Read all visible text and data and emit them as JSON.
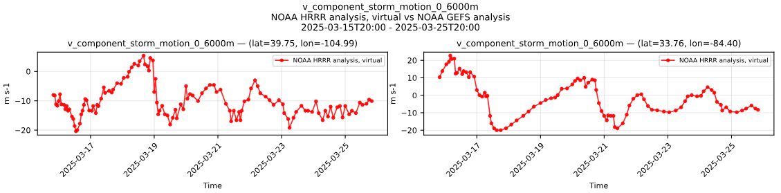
{
  "chart_data": [
    {
      "type": "line",
      "title": "v_component_storm_motion_0_6000m — (lat=39.75, lon=-104.99)",
      "xlabel": "Time",
      "ylabel": "m s-1",
      "annotations": [
        "v_component_storm_motion_0_6000m\nNOAA HRRR analysis, virtual vs NOAA GEFS analysis\n2025-03-15T20:00 - 2025-03-25T20:00"
      ],
      "xlim": [
        "2025-03-15T08:00",
        "2025-03-26T08:00"
      ],
      "xticks": [
        "2025-03-17",
        "2025-03-19",
        "2025-03-21",
        "2025-03-23",
        "2025-03-25"
      ],
      "ylim": [
        -21.7,
        6.6
      ],
      "yticks": [
        -20,
        -10,
        0
      ],
      "grid": true,
      "legend": "top right",
      "marker": "circle",
      "line_style": "solid",
      "series": [
        {
          "name": "NOAA HRRR analysis, virtual",
          "color": "#ff0000",
          "x": [
            "2025-03-15T20:00",
            "2025-03-15T21:00",
            "2025-03-15T22:00",
            "2025-03-15T23:00",
            "2025-03-16T00:00",
            "2025-03-16T01:00",
            "2025-03-16T02:00",
            "2025-03-16T04:00",
            "2025-03-16T05:00",
            "2025-03-16T06:00",
            "2025-03-16T07:00",
            "2025-03-16T08:00",
            "2025-03-16T10:00",
            "2025-03-16T11:00",
            "2025-03-16T12:00",
            "2025-03-16T13:00",
            "2025-03-16T14:00",
            "2025-03-16T16:00",
            "2025-03-16T17:00",
            "2025-03-16T18:00",
            "2025-03-16T19:00",
            "2025-03-16T20:00",
            "2025-03-16T21:00",
            "2025-03-16T23:00",
            "2025-03-17T01:00",
            "2025-03-17T02:00",
            "2025-03-17T04:00",
            "2025-03-17T05:00",
            "2025-03-17T06:00",
            "2025-03-17T08:00",
            "2025-03-17T10:00",
            "2025-03-17T11:00",
            "2025-03-17T14:00",
            "2025-03-17T16:00",
            "2025-03-17T17:00",
            "2025-03-17T20:00",
            "2025-03-17T23:00",
            "2025-03-18T01:00",
            "2025-03-18T04:00",
            "2025-03-18T05:00",
            "2025-03-18T07:00",
            "2025-03-18T09:00",
            "2025-03-18T12:00",
            "2025-03-18T13:00",
            "2025-03-18T16:00",
            "2025-03-18T17:00",
            "2025-03-18T19:00",
            "2025-03-18T20:00",
            "2025-03-18T21:00",
            "2025-03-18T23:00",
            "2025-03-19T00:00",
            "2025-03-19T01:00",
            "2025-03-19T02:00",
            "2025-03-19T03:00",
            "2025-03-19T04:00",
            "2025-03-19T06:00",
            "2025-03-19T08:00",
            "2025-03-19T10:00",
            "2025-03-19T12:00",
            "2025-03-19T14:00",
            "2025-03-19T16:00",
            "2025-03-19T17:00",
            "2025-03-19T20:00",
            "2025-03-19T22:00",
            "2025-03-20T00:00",
            "2025-03-20T01:00",
            "2025-03-20T03:00",
            "2025-03-20T05:00",
            "2025-03-20T09:00",
            "2025-03-20T12:00",
            "2025-03-20T15:00",
            "2025-03-20T18:00",
            "2025-03-20T21:00",
            "2025-03-20T23:00",
            "2025-03-21T02:00",
            "2025-03-21T06:00",
            "2025-03-21T09:00",
            "2025-03-21T10:00",
            "2025-03-21T12:00",
            "2025-03-21T14:00",
            "2025-03-21T16:00",
            "2025-03-21T17:00",
            "2025-03-21T18:00",
            "2025-03-21T20:00",
            "2025-03-21T23:00",
            "2025-03-22T01:00",
            "2025-03-22T04:00",
            "2025-03-22T06:00",
            "2025-03-22T08:00",
            "2025-03-22T12:00",
            "2025-03-22T15:00",
            "2025-03-22T18:00",
            "2025-03-22T22:00",
            "2025-03-23T01:00",
            "2025-03-23T02:00",
            "2025-03-23T05:00",
            "2025-03-23T06:00",
            "2025-03-23T09:00",
            "2025-03-23T11:00",
            "2025-03-23T15:00",
            "2025-03-23T18:00",
            "2025-03-23T20:00",
            "2025-03-23T23:00",
            "2025-03-24T02:00",
            "2025-03-24T04:00",
            "2025-03-24T07:00",
            "2025-03-24T09:00",
            "2025-03-24T11:00",
            "2025-03-24T13:00",
            "2025-03-24T15:00",
            "2025-03-24T18:00",
            "2025-03-24T20:00",
            "2025-03-24T22:00",
            "2025-03-25T00:00",
            "2025-03-25T03:00",
            "2025-03-25T05:00",
            "2025-03-25T08:00",
            "2025-03-25T11:00",
            "2025-03-25T13:00",
            "2025-03-25T16:00",
            "2025-03-25T18:00",
            "2025-03-25T20:00"
          ],
          "values": [
            -8.0,
            -8.2,
            -11.2,
            -11.7,
            -10.1,
            -7.8,
            -11.2,
            -11.4,
            -12.9,
            -11.8,
            -13.4,
            -12.9,
            -15.4,
            -16.2,
            -18.6,
            -20.4,
            -20,
            -17.8,
            -14.6,
            -13.4,
            -11.4,
            -9.4,
            -9.8,
            -13.3,
            -13.4,
            -11.8,
            -14.2,
            -11.4,
            -11.8,
            -9.3,
            -5.4,
            -7.3,
            -6.6,
            -7.2,
            -6.2,
            -4.0,
            -4.2,
            -2.2,
            -1.8,
            -0.1,
            1.4,
            2.6,
            2.0,
            3.5,
            5.4,
            2.4,
            1.8,
            0.3,
            4.6,
            3.8,
            -7.0,
            -2.5,
            -10.6,
            -14.6,
            -13.4,
            -11.7,
            -14.6,
            -15.0,
            -18.1,
            -15.8,
            -13.0,
            -16.0,
            -11.2,
            -12.9,
            -5.0,
            -9.3,
            -7.7,
            -8.2,
            -10.1,
            -7.4,
            -5.8,
            -4.6,
            -4.6,
            -7.0,
            -6.2,
            -11.0,
            -13.4,
            -17.0,
            -13.4,
            -16.6,
            -13.8,
            -16.6,
            -13.4,
            -10.2,
            -9.6,
            -5.8,
            -3.0,
            -5.0,
            -7.4,
            -8.6,
            -9.8,
            -11.4,
            -9.8,
            -11.2,
            -14.2,
            -16.2,
            -19.2,
            -15.8,
            -13.8,
            -11.7,
            -13.4,
            -13.4,
            -13.8,
            -10.2,
            -14.2,
            -16.6,
            -13.4,
            -15.4,
            -12.0,
            -15.8,
            -12.2,
            -11.8,
            -15.7,
            -11.8,
            -14.6,
            -13.4,
            -14.2,
            -10.6,
            -11.4,
            -11.0,
            -9.6,
            -10.1
          ]
        }
      ]
    },
    {
      "type": "line",
      "title": "v_component_storm_motion_0_6000m — (lat=33.76, lon=-84.40)",
      "xlabel": "Time",
      "ylabel": "m s-1",
      "xlim": [
        "2025-03-15T08:00",
        "2025-03-26T08:00"
      ],
      "xticks": [
        "2025-03-17",
        "2025-03-19",
        "2025-03-21",
        "2025-03-23",
        "2025-03-25"
      ],
      "ylim": [
        -22.8,
        24.7
      ],
      "yticks": [
        -20,
        -10,
        0,
        10,
        20
      ],
      "grid": true,
      "legend": "top right",
      "marker": "circle",
      "line_style": "solid",
      "series": [
        {
          "name": "NOAA HRRR analysis, virtual",
          "color": "#ff0000",
          "x": [
            "2025-03-15T20:00",
            "2025-03-15T22:00",
            "2025-03-16T01:00",
            "2025-03-16T03:00",
            "2025-03-16T04:00",
            "2025-03-16T05:00",
            "2025-03-16T07:00",
            "2025-03-16T08:00",
            "2025-03-16T09:00",
            "2025-03-16T11:00",
            "2025-03-16T13:00",
            "2025-03-16T14:00",
            "2025-03-16T16:00",
            "2025-03-16T18:00",
            "2025-03-16T19:00",
            "2025-03-16T22:00",
            "2025-03-17T00:00",
            "2025-03-17T02:00",
            "2025-03-17T04:00",
            "2025-03-17T06:00",
            "2025-03-17T07:00",
            "2025-03-17T08:00",
            "2025-03-17T10:00",
            "2025-03-17T11:00",
            "2025-03-17T13:00",
            "2025-03-17T15:00",
            "2025-03-17T18:00",
            "2025-03-17T22:00",
            "2025-03-18T02:00",
            "2025-03-18T06:00",
            "2025-03-18T11:00",
            "2025-03-18T15:00",
            "2025-03-18T19:00",
            "2025-03-19T00:00",
            "2025-03-19T04:00",
            "2025-03-19T08:00",
            "2025-03-19T11:00",
            "2025-03-19T13:00",
            "2025-03-19T16:00",
            "2025-03-19T20:00",
            "2025-03-20T00:00",
            "2025-03-20T02:00",
            "2025-03-20T04:00",
            "2025-03-20T06:00",
            "2025-03-20T09:00",
            "2025-03-20T10:00",
            "2025-03-20T12:00",
            "2025-03-20T15:00",
            "2025-03-20T17:00",
            "2025-03-20T18:00",
            "2025-03-20T20:00",
            "2025-03-20T22:00",
            "2025-03-21T00:00",
            "2025-03-21T02:00",
            "2025-03-21T03:00",
            "2025-03-21T05:00",
            "2025-03-21T07:00",
            "2025-03-21T08:00",
            "2025-03-21T10:00",
            "2025-03-21T14:00",
            "2025-03-21T17:00",
            "2025-03-21T19:00",
            "2025-03-21T22:00",
            "2025-03-22T01:00",
            "2025-03-22T04:00",
            "2025-03-22T06:00",
            "2025-03-22T09:00",
            "2025-03-22T12:00",
            "2025-03-22T16:00",
            "2025-03-22T21:00",
            "2025-03-23T01:00",
            "2025-03-23T06:00",
            "2025-03-23T10:00",
            "2025-03-23T13:00",
            "2025-03-23T15:00",
            "2025-03-23T18:00",
            "2025-03-23T22:00",
            "2025-03-24T01:00",
            "2025-03-24T03:00",
            "2025-03-24T06:00",
            "2025-03-24T09:00",
            "2025-03-24T11:00",
            "2025-03-24T13:00",
            "2025-03-24T16:00",
            "2025-03-24T17:00",
            "2025-03-24T20:00",
            "2025-03-24T23:00",
            "2025-03-25T04:00",
            "2025-03-25T08:00",
            "2025-03-25T11:00",
            "2025-03-25T15:00",
            "2025-03-25T18:00",
            "2025-03-25T20:00"
          ],
          "values": [
            10.4,
            13.8,
            17.7,
            19.2,
            22.7,
            20.8,
            21.0,
            12.4,
            12.8,
            15.2,
            12.1,
            13.8,
            13.2,
            10.4,
            13.2,
            10.7,
            3.0,
            0.1,
            -0.8,
            1.5,
            -0.6,
            -0.3,
            -11.8,
            -16.1,
            -18.9,
            -20,
            -20,
            -18.9,
            -16.8,
            -14.4,
            -11.8,
            -9.3,
            -6.5,
            -4.5,
            -2.7,
            -1.7,
            -1.3,
            0.1,
            3.7,
            3.9,
            6.2,
            8.2,
            9.6,
            8.6,
            10.0,
            4.8,
            7.2,
            9.0,
            8.6,
            3.0,
            -4.5,
            -9.0,
            -11.8,
            -14.4,
            -11.5,
            -11.8,
            -11.8,
            -18.2,
            -18.9,
            -16.1,
            -11.1,
            -5.9,
            -2.0,
            0.1,
            0.6,
            -2.3,
            -6.2,
            -8.3,
            -8.6,
            -9.3,
            -9.7,
            -8.7,
            -6.9,
            -3.4,
            -0.6,
            0.1,
            -0.6,
            -0.3,
            2.3,
            4.6,
            3.0,
            1.5,
            -3.8,
            -5.5,
            -8.7,
            -6.9,
            -9.3,
            -9.7,
            -8.7,
            -7.6,
            -5.9,
            -7.6,
            -8.3
          ]
        }
      ]
    }
  ]
}
